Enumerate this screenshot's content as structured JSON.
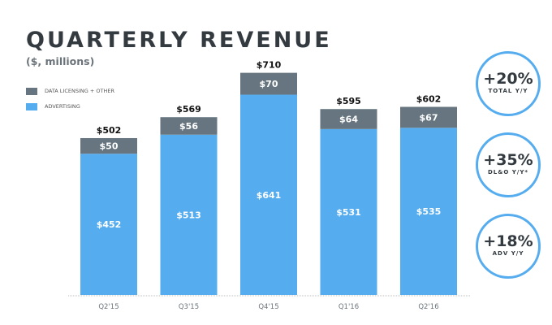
{
  "chart_data": {
    "type": "bar",
    "stacked": true,
    "title": "QUARTERLY REVENUE",
    "subtitle": "($, millions)",
    "categories": [
      "Q2'15",
      "Q3'15",
      "Q4'15",
      "Q1'16",
      "Q2'16"
    ],
    "series": [
      {
        "name": "ADVERTISING",
        "color": "#55acee",
        "values": [
          452,
          513,
          641,
          531,
          535
        ],
        "labels": [
          "$452",
          "$513",
          "$641",
          "$531",
          "$535"
        ]
      },
      {
        "name": "DATA LICENSING + OTHER",
        "color": "#66757f",
        "values": [
          50,
          56,
          70,
          64,
          67
        ],
        "labels": [
          "$50",
          "$56",
          "$70",
          "$64",
          "$67"
        ]
      }
    ],
    "totals": [
      502,
      569,
      710,
      595,
      602
    ],
    "total_labels": [
      "$502",
      "$569",
      "$710",
      "$595",
      "$602"
    ],
    "legend": [
      "DATA LICENSING + OTHER",
      "ADVERTISING"
    ],
    "legend_position": "top-left",
    "xlabel": "",
    "ylabel": "",
    "ylim": [
      0,
      760
    ],
    "grid": false
  },
  "badges": [
    {
      "value": "+20%",
      "label": "TOTAL Y/Y"
    },
    {
      "value": "+35%",
      "label": "DL&O Y/Y*"
    },
    {
      "value": "+18%",
      "label": "ADV Y/Y"
    }
  ]
}
